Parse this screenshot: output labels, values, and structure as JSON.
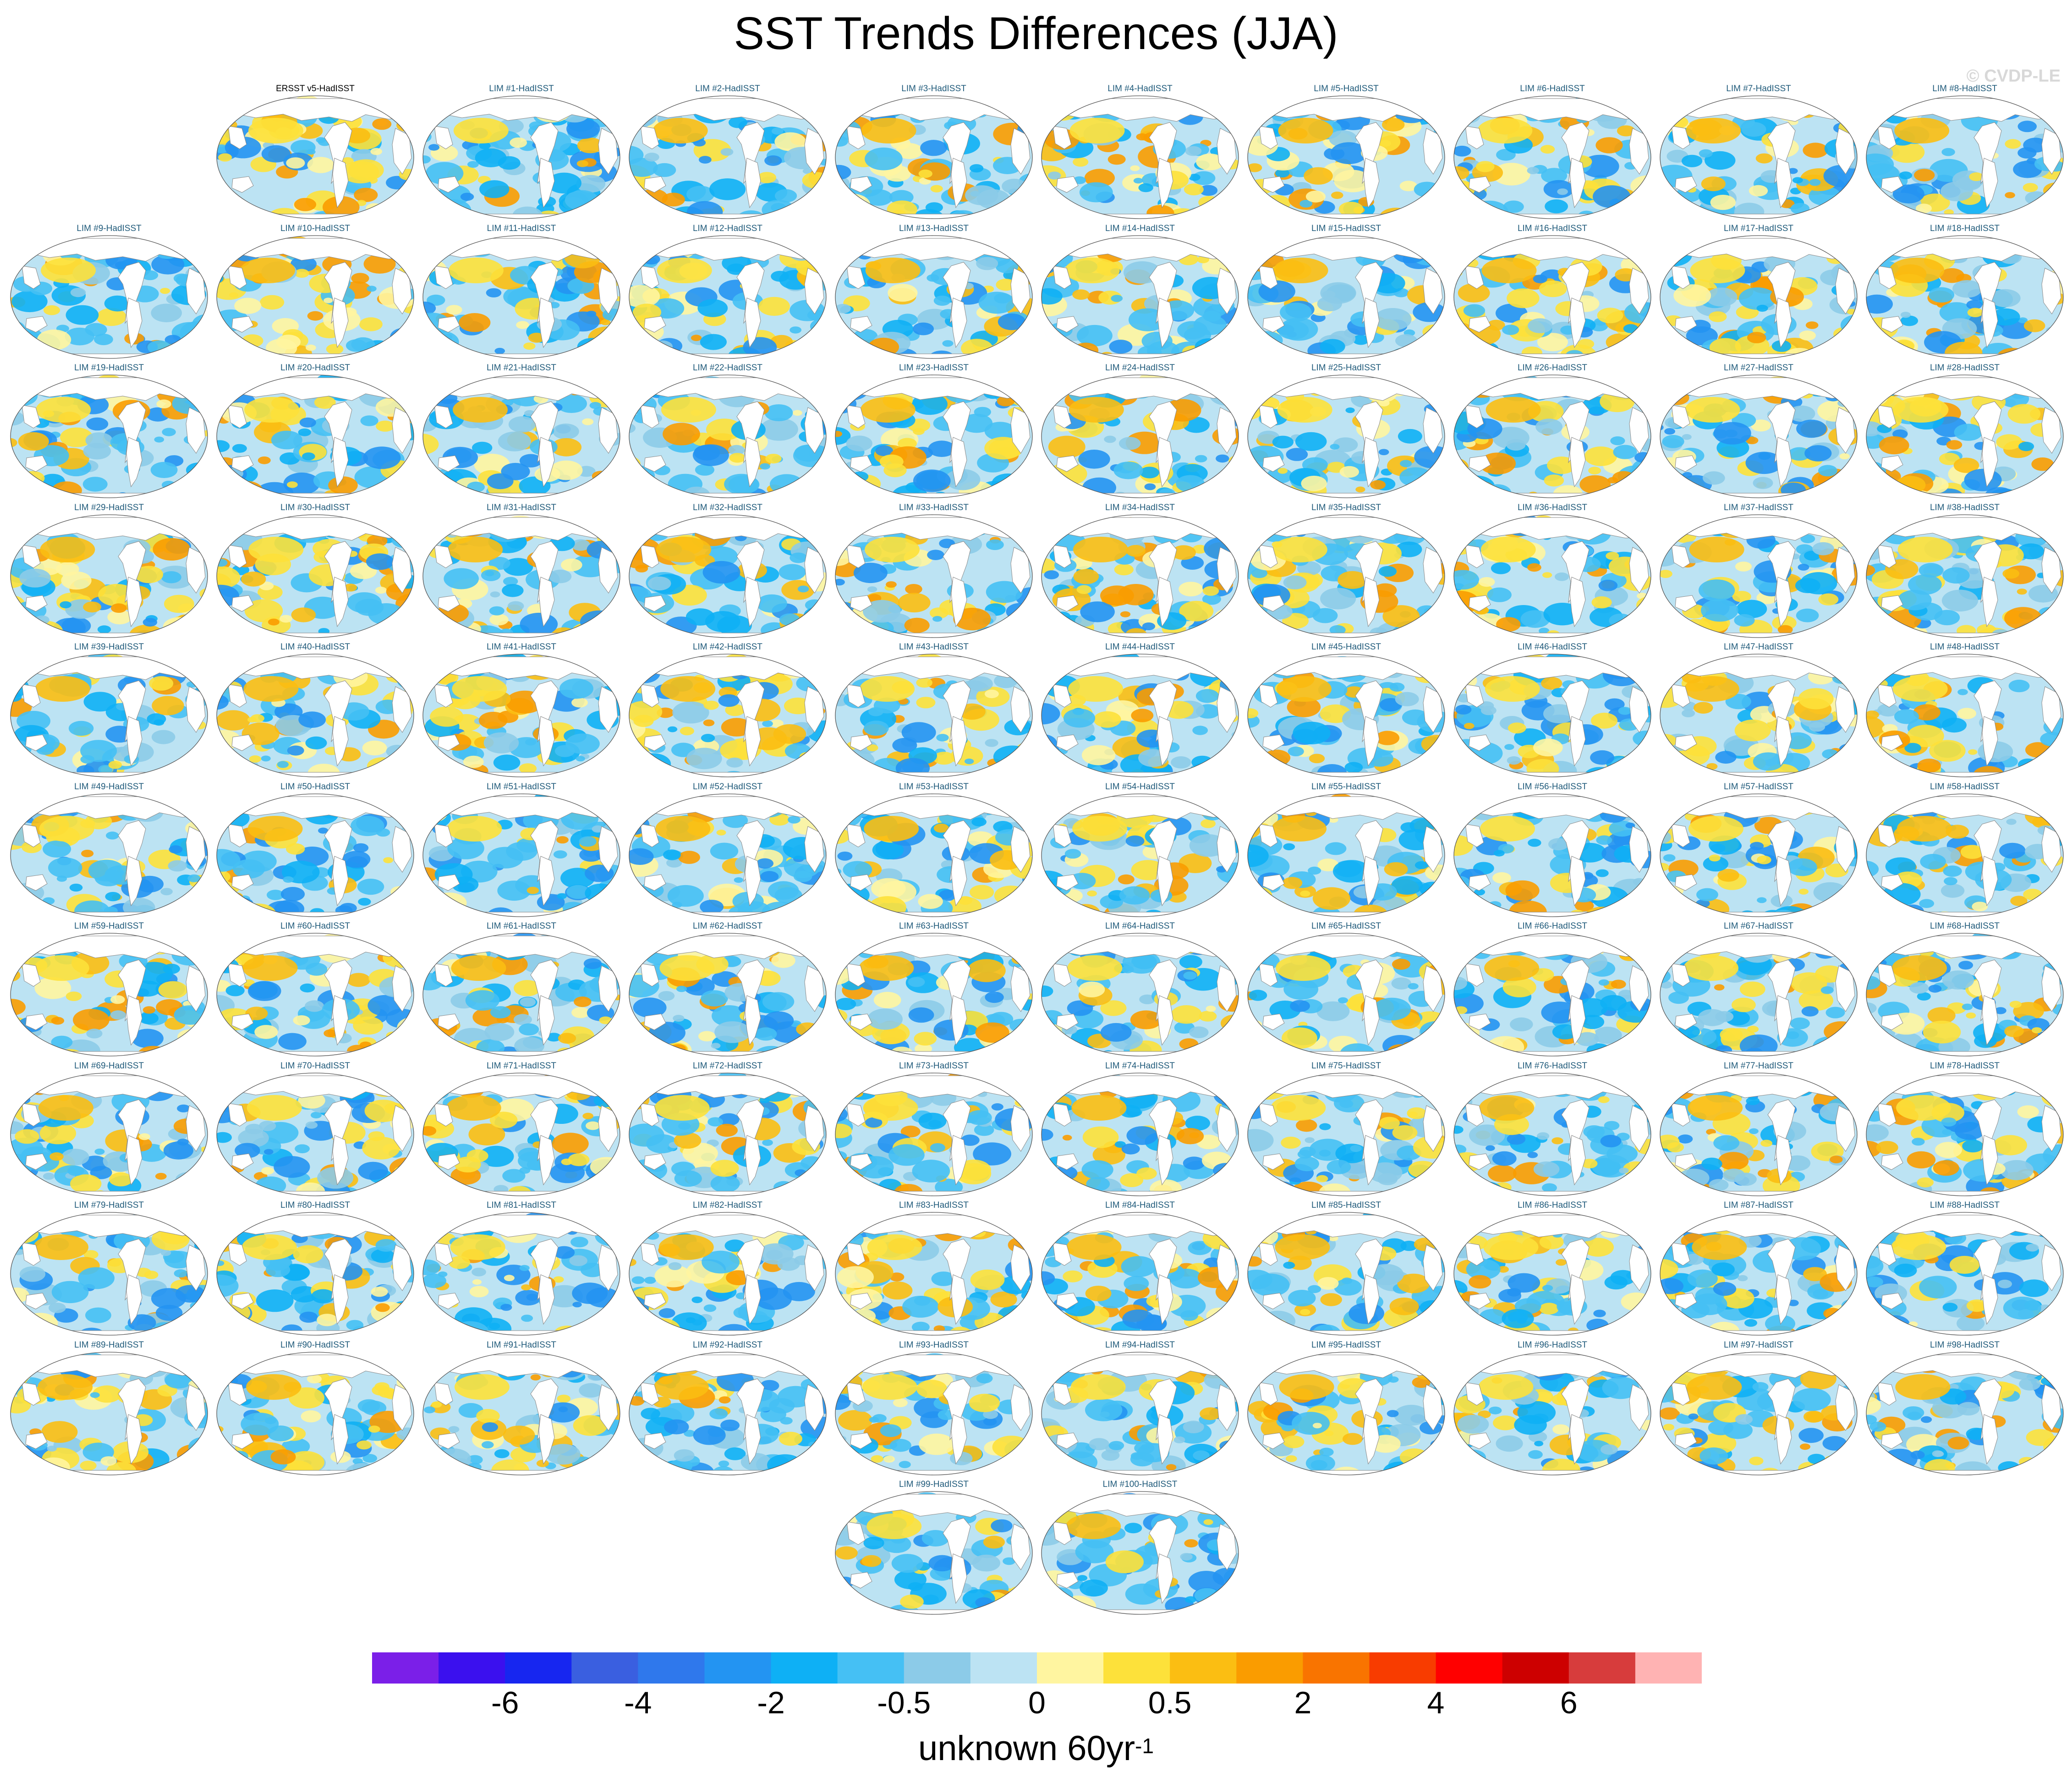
{
  "title": "SST Trends Differences (JJA)",
  "watermark": "© CVDP-LE",
  "chart_data": {
    "type": "map-panel-grid",
    "title": "SST Trends Differences (JJA)",
    "panels": [
      "ERSST v5-HadISST",
      "LIM #1-HadISST",
      "LIM #2-HadISST",
      "LIM #3-HadISST",
      "LIM #4-HadISST",
      "LIM #5-HadISST",
      "LIM #6-HadISST",
      "LIM #7-HadISST",
      "LIM #8-HadISST",
      "LIM #9-HadISST",
      "LIM #10-HadISST",
      "LIM #11-HadISST",
      "LIM #12-HadISST",
      "LIM #13-HadISST",
      "LIM #14-HadISST",
      "LIM #15-HadISST",
      "LIM #16-HadISST",
      "LIM #17-HadISST",
      "LIM #18-HadISST",
      "LIM #19-HadISST",
      "LIM #20-HadISST",
      "LIM #21-HadISST",
      "LIM #22-HadISST",
      "LIM #23-HadISST",
      "LIM #24-HadISST",
      "LIM #25-HadISST",
      "LIM #26-HadISST",
      "LIM #27-HadISST",
      "LIM #28-HadISST",
      "LIM #29-HadISST",
      "LIM #30-HadISST",
      "LIM #31-HadISST",
      "LIM #32-HadISST",
      "LIM #33-HadISST",
      "LIM #34-HadISST",
      "LIM #35-HadISST",
      "LIM #36-HadISST",
      "LIM #37-HadISST",
      "LIM #38-HadISST",
      "LIM #39-HadISST",
      "LIM #40-HadISST",
      "LIM #41-HadISST",
      "LIM #42-HadISST",
      "LIM #43-HadISST",
      "LIM #44-HadISST",
      "LIM #45-HadISST",
      "LIM #46-HadISST",
      "LIM #47-HadISST",
      "LIM #48-HadISST",
      "LIM #49-HadISST",
      "LIM #50-HadISST",
      "LIM #51-HadISST",
      "LIM #52-HadISST",
      "LIM #53-HadISST",
      "LIM #54-HadISST",
      "LIM #55-HadISST",
      "LIM #56-HadISST",
      "LIM #57-HadISST",
      "LIM #58-HadISST",
      "LIM #59-HadISST",
      "LIM #60-HadISST",
      "LIM #61-HadISST",
      "LIM #62-HadISST",
      "LIM #63-HadISST",
      "LIM #64-HadISST",
      "LIM #65-HadISST",
      "LIM #66-HadISST",
      "LIM #67-HadISST",
      "LIM #68-HadISST",
      "LIM #69-HadISST",
      "LIM #70-HadISST",
      "LIM #71-HadISST",
      "LIM #72-HadISST",
      "LIM #73-HadISST",
      "LIM #74-HadISST",
      "LIM #75-HadISST",
      "LIM #76-HadISST",
      "LIM #77-HadISST",
      "LIM #78-HadISST",
      "LIM #79-HadISST",
      "LIM #80-HadISST",
      "LIM #81-HadISST",
      "LIM #82-HadISST",
      "LIM #83-HadISST",
      "LIM #84-HadISST",
      "LIM #85-HadISST",
      "LIM #86-HadISST",
      "LIM #87-HadISST",
      "LIM #88-HadISST",
      "LIM #89-HadISST",
      "LIM #90-HadISST",
      "LIM #91-HadISST",
      "LIM #92-HadISST",
      "LIM #93-HadISST",
      "LIM #94-HadISST",
      "LIM #95-HadISST",
      "LIM #96-HadISST",
      "LIM #97-HadISST",
      "LIM #98-HadISST",
      "LIM #99-HadISST",
      "LIM #100-HadISST"
    ],
    "colorbar": {
      "colors": [
        "#7b1fe8",
        "#3b10ee",
        "#1726f0",
        "#3a5fe0",
        "#2f78ec",
        "#2394f2",
        "#0eb0f5",
        "#45c0f4",
        "#8ccbe8",
        "#bce3f3",
        "#fff5a0",
        "#fde13a",
        "#fbbe12",
        "#fa9c00",
        "#f97400",
        "#f83c00",
        "#ff0000",
        "#cd0000",
        "#d73c3c",
        "#ffb3b3"
      ],
      "tick_labels": [
        "-6",
        "-4",
        "-2",
        "-0.5",
        "0",
        "0.5",
        "2",
        "4",
        "6"
      ],
      "label": "unknown 60yr",
      "label_exponent": "-1"
    }
  }
}
